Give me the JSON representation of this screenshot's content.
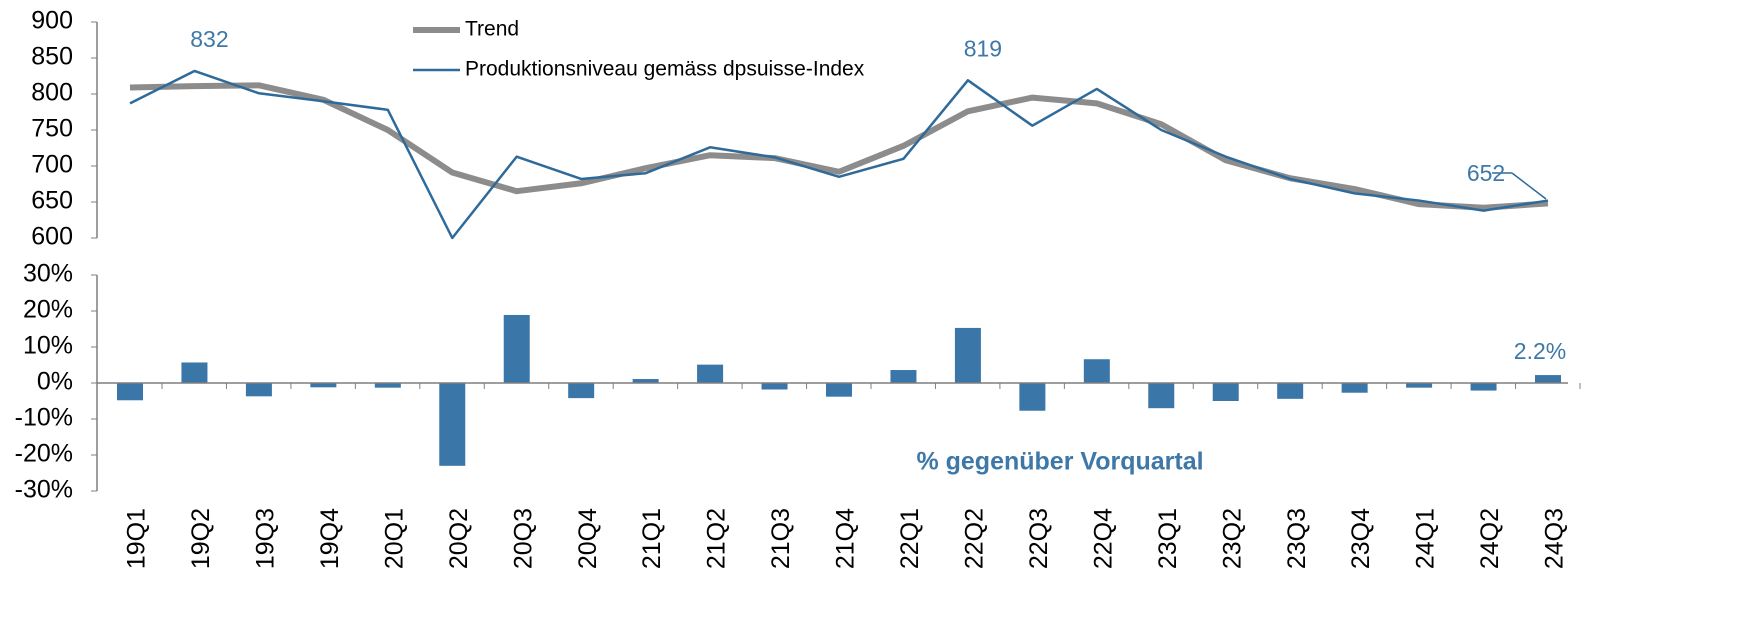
{
  "chart_data": [
    {
      "type": "line",
      "ylim": [
        600,
        900
      ],
      "yticks": [
        600,
        650,
        700,
        750,
        800,
        850,
        900
      ],
      "legend": "top-center",
      "series": [
        {
          "name": "Trend",
          "color": "#8c8c8c",
          "values": [
            809,
            811,
            812,
            792,
            750,
            691,
            665,
            676,
            697,
            715,
            711,
            692,
            728,
            776,
            795,
            787,
            758,
            708,
            683,
            668,
            647,
            642,
            648
          ]
        },
        {
          "name": "Produktionsniveau gemäss dpsuisse-Index",
          "color": "#2e6a9a",
          "values": [
            787,
            832,
            801,
            790,
            778,
            600,
            713,
            682,
            690,
            726,
            712,
            685,
            710,
            819,
            756,
            807,
            750,
            713,
            682,
            662,
            652,
            638,
            652
          ],
          "value_labels": [
            null,
            "832",
            null,
            null,
            null,
            null,
            null,
            null,
            null,
            null,
            null,
            null,
            null,
            "819",
            null,
            null,
            null,
            null,
            null,
            null,
            null,
            null,
            "652"
          ]
        }
      ]
    },
    {
      "type": "bar",
      "title": "% gegenüber Vorquartal",
      "color": "#3a76a8",
      "categories": [
        "19Q1",
        "19Q2",
        "19Q3",
        "19Q4",
        "20Q1",
        "20Q2",
        "20Q3",
        "20Q4",
        "21Q1",
        "21Q2",
        "21Q3",
        "21Q4",
        "22Q1",
        "22Q2",
        "22Q3",
        "22Q4",
        "23Q1",
        "23Q2",
        "23Q3",
        "23Q4",
        "24Q1",
        "24Q2",
        "24Q3"
      ],
      "values": [
        -4.8,
        5.7,
        -3.7,
        -1.2,
        -1.3,
        -23,
        18.9,
        -4.2,
        1.1,
        5.1,
        -1.8,
        -3.8,
        3.6,
        15.3,
        -7.7,
        6.6,
        -7,
        -5,
        -4.4,
        -2.7,
        -1.3,
        -2.1,
        2.2
      ],
      "value_labels": [
        null,
        null,
        null,
        null,
        null,
        null,
        null,
        null,
        null,
        null,
        null,
        null,
        null,
        null,
        null,
        null,
        null,
        null,
        null,
        null,
        null,
        null,
        "2.2%"
      ],
      "ylim": [
        -30,
        30
      ],
      "yticks": [
        {
          "value": -30,
          "label": "-30%"
        },
        {
          "value": -20,
          "label": "-20%"
        },
        {
          "value": -10,
          "label": "-10%"
        },
        {
          "value": 0,
          "label": "0%"
        },
        {
          "value": 10,
          "label": "10%"
        },
        {
          "value": 20,
          "label": "20%"
        },
        {
          "value": 30,
          "label": "30%"
        }
      ]
    }
  ]
}
